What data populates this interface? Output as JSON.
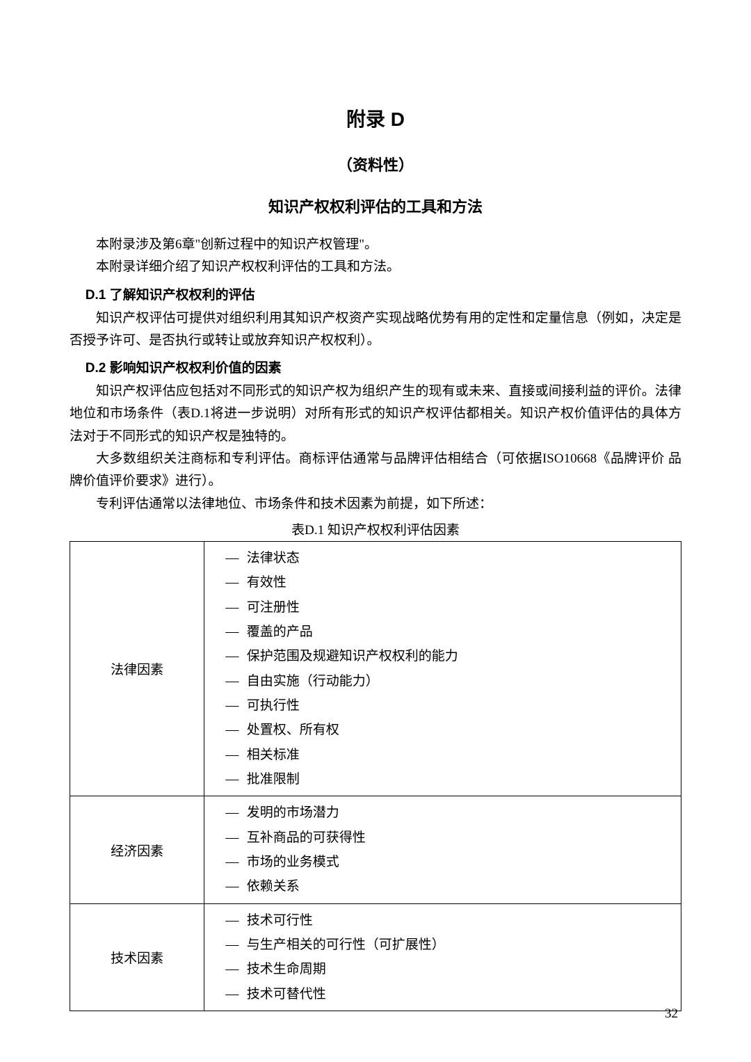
{
  "heading": {
    "title": "附录 D",
    "subtitle1": "（资料性）",
    "subtitle2": "知识产权权利评估的工具和方法"
  },
  "intro": {
    "p1": "本附录涉及第6章\"创新过程中的知识产权管理\"。",
    "p2": "本附录详细介绍了知识产权权利评估的工具和方法。"
  },
  "d1": {
    "heading": "D.1 了解知识产权权利的评估",
    "p1": "知识产权评估可提供对组织利用其知识产权资产实现战略优势有用的定性和定量信息（例如，决定是否授予许可、是否执行或转让或放弃知识产权权利）。"
  },
  "d2": {
    "heading": "D.2 影响知识产权权利价值的因素",
    "p1": "知识产权评估应包括对不同形式的知识产权为组织产生的现有或未来、直接或间接利益的评价。法律地位和市场条件（表D.1将进一步说明）对所有形式的知识产权评估都相关。知识产权价值评估的具体方法对于不同形式的知识产权是独特的。",
    "p2": "大多数组织关注商标和专利评估。商标评估通常与品牌评估相结合（可依据ISO10668《品牌评价 品牌价值评价要求》进行）。",
    "p3": "专利评估通常以法律地位、市场条件和技术因素为前提，如下所述："
  },
  "table": {
    "caption": "表D.1 知识产权权利评估因素",
    "dash": "—",
    "rows": [
      {
        "label": "法律因素",
        "items": [
          "法律状态",
          "有效性",
          "可注册性",
          "覆盖的产品",
          "保护范围及规避知识产权权利的能力",
          "自由实施（行动能力）",
          "可执行性",
          "处置权、所有权",
          "相关标准",
          "批准限制"
        ]
      },
      {
        "label": "经济因素",
        "items": [
          "发明的市场潜力",
          "互补商品的可获得性",
          "市场的业务模式",
          "依赖关系"
        ]
      },
      {
        "label": "技术因素",
        "items": [
          "技术可行性",
          "与生产相关的可行性（可扩展性）",
          "技术生命周期",
          "技术可替代性"
        ]
      }
    ]
  },
  "page_number": "32"
}
